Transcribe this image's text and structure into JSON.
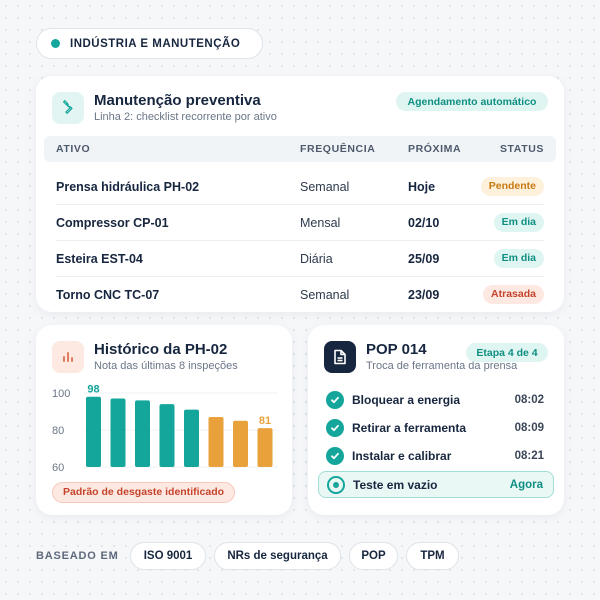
{
  "header": {
    "label": "INDÚSTRIA E MANUTENÇÃO"
  },
  "maintenance": {
    "title": "Manutenção preventiva",
    "subtitle": "Linha 2: checklist recorrente por ativo",
    "badge": "Agendamento automático",
    "icon": "wrench-icon",
    "columns": {
      "asset": "ATIVO",
      "frequency": "FREQUÊNCIA",
      "next": "PRÓXIMA",
      "status": "STATUS"
    },
    "rows": [
      {
        "asset": "Prensa hidráulica PH-02",
        "frequency": "Semanal",
        "next": "Hoje",
        "status": "Pendente",
        "status_color": "#c77a12",
        "status_bg": "#fdf1dc"
      },
      {
        "asset": "Compressor CP-01",
        "frequency": "Mensal",
        "next": "02/10",
        "status": "Em dia",
        "status_color": "#0f8f83",
        "status_bg": "#dff5f1"
      },
      {
        "asset": "Esteira EST-04",
        "frequency": "Diária",
        "next": "25/09",
        "status": "Em dia",
        "status_color": "#0f8f83",
        "status_bg": "#dff5f1"
      },
      {
        "asset": "Torno CNC TC-07",
        "frequency": "Semanal",
        "next": "23/09",
        "status": "Atrasada",
        "status_color": "#c4442c",
        "status_bg": "#fde8e2"
      }
    ]
  },
  "history": {
    "title": "Histórico da PH-02",
    "subtitle": "Nota das últimas 8 inspeções",
    "icon": "bar-chart-icon",
    "warning": "Padrão de desgaste identificado"
  },
  "chart_data": {
    "type": "bar",
    "values": [
      98,
      97,
      96,
      94,
      91,
      87,
      85,
      81
    ],
    "first_label": "98",
    "last_label": "81",
    "ylim": [
      60,
      100
    ],
    "yticks": [
      "60",
      "80",
      "100"
    ],
    "colors": {
      "good": "#14a69a",
      "declining": "#e9a23b"
    },
    "declining_from_index": 5
  },
  "pop": {
    "title": "POP 014",
    "subtitle": "Troca de ferramenta da prensa",
    "badge": "Etapa 4 de 4",
    "icon": "document-icon",
    "steps": [
      {
        "label": "Bloquear a energia",
        "time": "08:02",
        "done": true
      },
      {
        "label": "Retirar a ferramenta",
        "time": "08:09",
        "done": true
      },
      {
        "label": "Instalar e calibrar",
        "time": "08:21",
        "done": true
      },
      {
        "label": "Teste em vazio",
        "time": "Agora",
        "done": false
      }
    ]
  },
  "footer": {
    "label": "BASEADO EM",
    "tags": [
      "ISO 9001",
      "NRs de segurança",
      "POP",
      "TPM"
    ]
  },
  "colors": {
    "accent": "#14a69a",
    "navy": "#17263f",
    "warning": "#e9a23b",
    "danger": "#c4442c"
  }
}
